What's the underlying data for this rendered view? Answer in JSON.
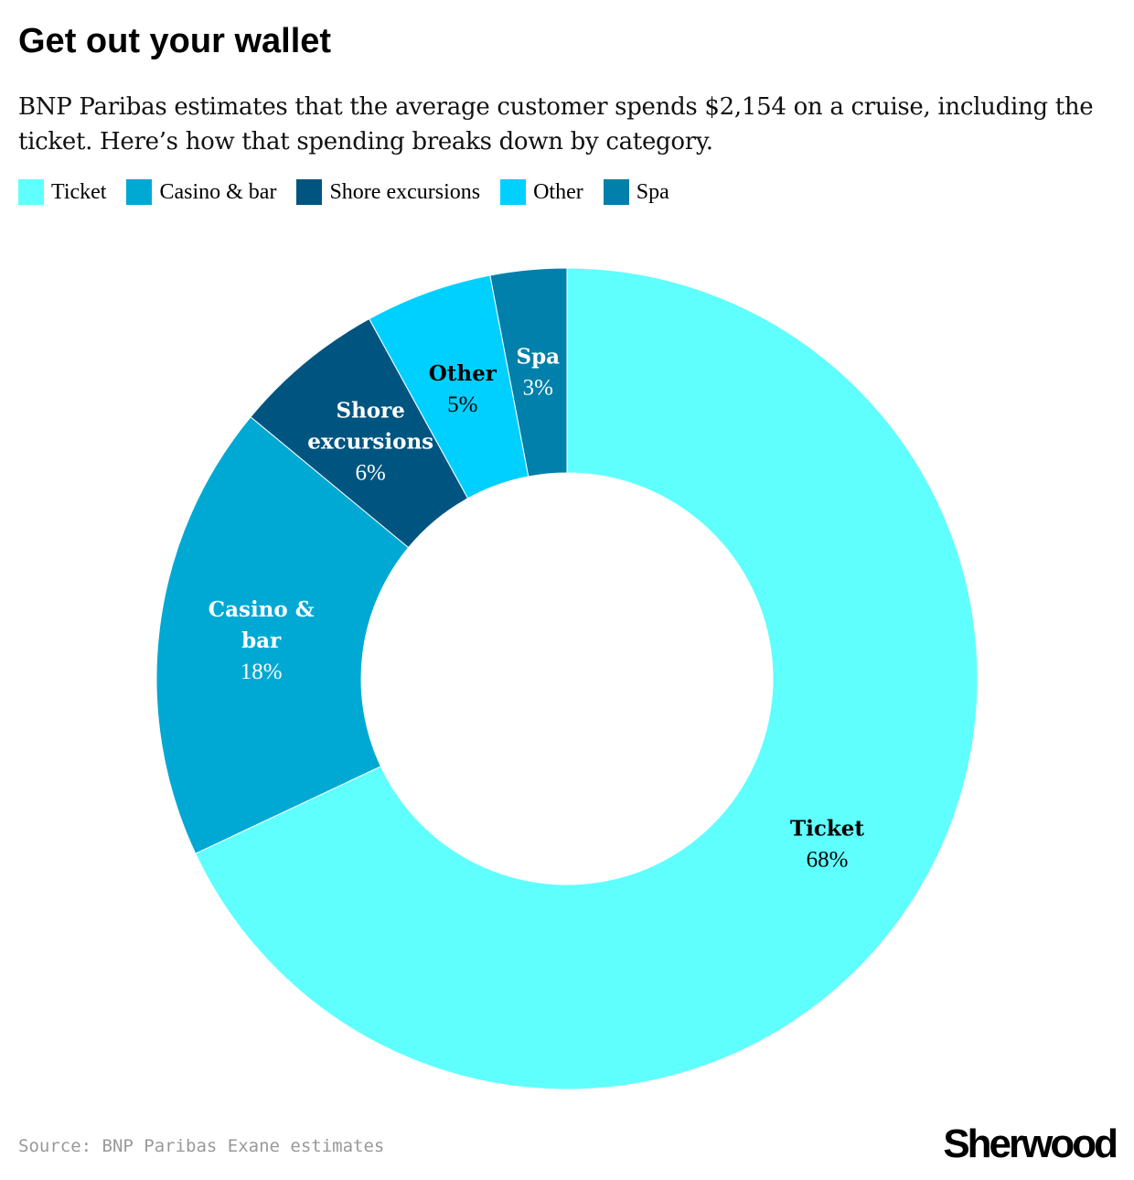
{
  "title": "Get out your wallet",
  "subtitle": "BNP Paribas estimates that the average customer spends $2,154 on a cruise, including the ticket. Here’s how that spending breaks down by category.",
  "source": "Source: BNP Paribas Exane estimates",
  "logo": "Sherwood",
  "chart_data": {
    "type": "pie",
    "variant": "donut",
    "title": "Get out your wallet",
    "legend_position": "top-left",
    "categories": [
      "Ticket",
      "Casino & bar",
      "Shore excursions",
      "Other",
      "Spa"
    ],
    "values": [
      68,
      18,
      6,
      5,
      3
    ],
    "unit": "%",
    "colors": [
      "#5ffffe",
      "#00a9d4",
      "#005580",
      "#00d0ff",
      "#0080aa"
    ],
    "label_lines": [
      [
        "Ticket"
      ],
      [
        "Casino &",
        "bar"
      ],
      [
        "Shore",
        "excursions"
      ],
      [
        "Other"
      ],
      [
        "Spa"
      ]
    ],
    "label_text_colors": [
      "#000000",
      "#ffffff",
      "#ffffff",
      "#000000",
      "#ffffff"
    ],
    "value_labels": [
      "68%",
      "18%",
      "6%",
      "5%",
      "3%"
    ]
  }
}
